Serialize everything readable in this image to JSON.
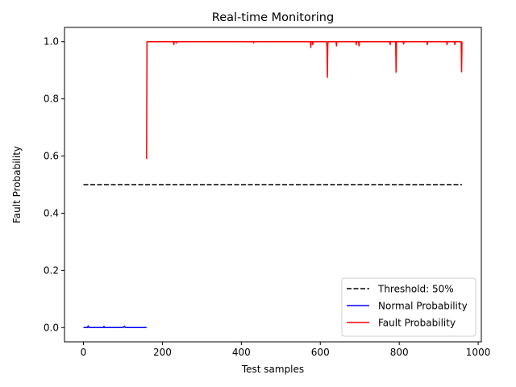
{
  "chart_data": {
    "type": "line",
    "title": "Real-time Monitoring",
    "xlabel": "Test samples",
    "ylabel": "Fault Probability",
    "xlim": [
      -48,
      1008
    ],
    "ylim": [
      -0.05,
      1.05
    ],
    "xticks": [
      0,
      200,
      400,
      600,
      800,
      1000
    ],
    "yticks": [
      0.0,
      0.2,
      0.4,
      0.6,
      0.8,
      1.0
    ],
    "xtick_labels": [
      "0",
      "200",
      "400",
      "600",
      "800",
      "1000"
    ],
    "ytick_labels": [
      "0.0",
      "0.2",
      "0.4",
      "0.6",
      "0.8",
      "1.0"
    ],
    "grid": false,
    "legend_position": "lower-right",
    "series": [
      {
        "name": "Threshold: 50%",
        "color": "#000000",
        "style": "dashed",
        "x": [
          0,
          959
        ],
        "y": [
          0.5,
          0.5
        ]
      },
      {
        "name": "Normal Probability",
        "color": "#0000ff",
        "style": "solid",
        "x": [
          0,
          10,
          12,
          14,
          30,
          50,
          52,
          54,
          80,
          100,
          104,
          106,
          120,
          140,
          160
        ],
        "y": [
          0.0,
          0.0,
          0.006,
          0.0,
          0.0,
          0.0,
          0.004,
          0.0,
          0.0,
          0.0,
          0.005,
          0.0,
          0.0,
          0.0,
          0.0
        ]
      },
      {
        "name": "Fault Probability",
        "color": "#ff0000",
        "style": "solid",
        "x": [
          160,
          161,
          162,
          228,
          229,
          230,
          234,
          235,
          236,
          430,
          431,
          432,
          575,
          576,
          577,
          580,
          581,
          582,
          616,
          617,
          618,
          619,
          620,
          640,
          641,
          642,
          690,
          691,
          692,
          697,
          698,
          699,
          776,
          777,
          778,
          791,
          792,
          793,
          810,
          811,
          812,
          870,
          871,
          872,
          920,
          921,
          922,
          940,
          941,
          942,
          957,
          958,
          959
        ],
        "y": [
          0.59,
          1.0,
          1.0,
          1.0,
          0.99,
          1.0,
          1.0,
          0.995,
          1.0,
          1.0,
          0.996,
          1.0,
          1.0,
          0.98,
          1.0,
          1.0,
          0.99,
          1.0,
          1.0,
          0.98,
          0.875,
          0.99,
          1.0,
          1.0,
          0.985,
          1.0,
          1.0,
          0.99,
          1.0,
          1.0,
          0.985,
          1.0,
          1.0,
          0.99,
          1.0,
          1.0,
          0.893,
          1.0,
          1.0,
          0.992,
          1.0,
          1.0,
          0.99,
          1.0,
          1.0,
          0.99,
          1.0,
          1.0,
          0.99,
          1.0,
          1.0,
          0.895,
          1.0
        ]
      }
    ]
  }
}
